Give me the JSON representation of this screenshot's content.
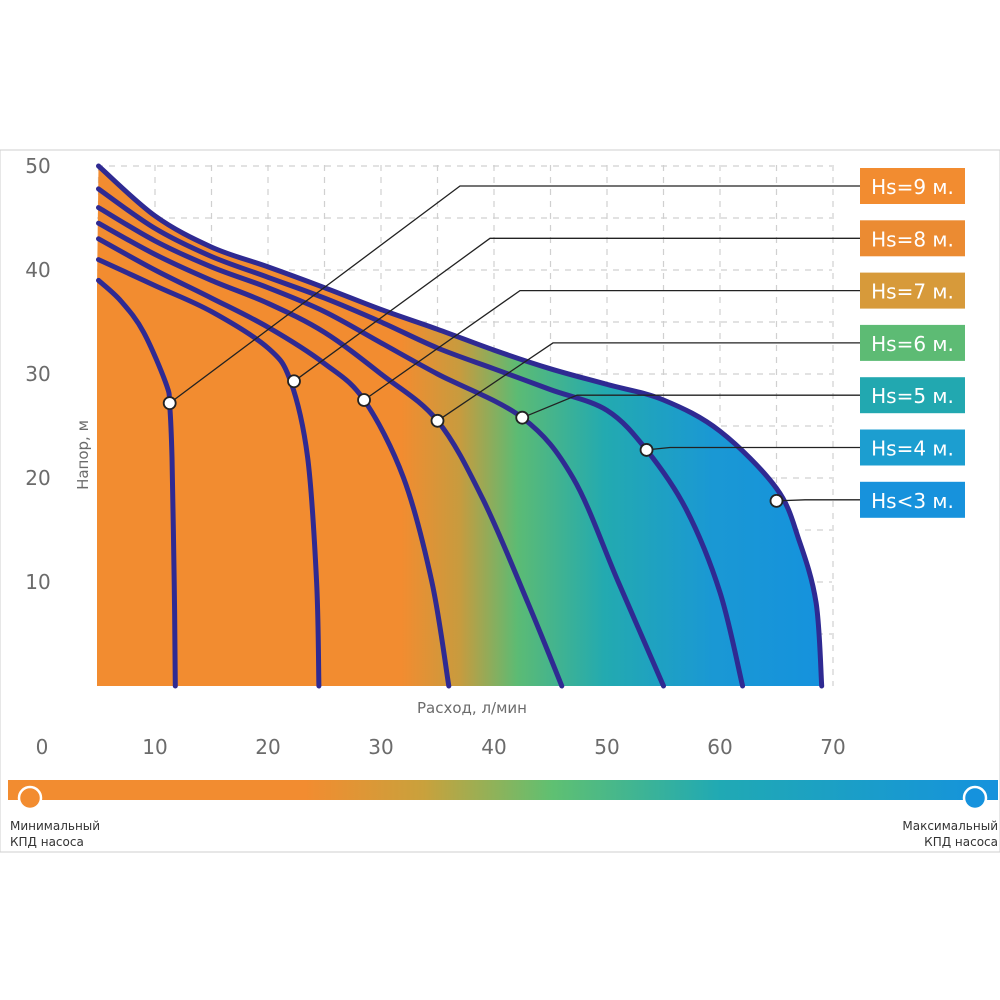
{
  "chart_data": {
    "type": "line",
    "xlabel": "Расход, л/мин",
    "ylabel": "Напор, м",
    "xlim": [
      0,
      70
    ],
    "ylim": [
      0,
      50
    ],
    "x_ticks": [
      "0",
      "10",
      "20",
      "30",
      "40",
      "50",
      "60",
      "70"
    ],
    "y_ticks": [
      "10",
      "20",
      "30",
      "40",
      "50"
    ],
    "grid": true,
    "series": [
      {
        "name": "Hs=9 м.",
        "color": "#f28c30",
        "points": [
          [
            5,
            39
          ],
          [
            7,
            37
          ],
          [
            9,
            34
          ],
          [
            11,
            29
          ],
          [
            11.3,
            27
          ],
          [
            11.5,
            22
          ],
          [
            11.7,
            10
          ],
          [
            11.8,
            0
          ]
        ]
      },
      {
        "name": "Hs=8 м.",
        "color": "#eb8b32",
        "points": [
          [
            5,
            41
          ],
          [
            10,
            38.5
          ],
          [
            15,
            36
          ],
          [
            20,
            32.5
          ],
          [
            22,
            29.3
          ],
          [
            23.5,
            22
          ],
          [
            24.3,
            10
          ],
          [
            24.5,
            0
          ]
        ]
      },
      {
        "name": "Hs=7 м.",
        "color": "#d79a3a",
        "points": [
          [
            5,
            43
          ],
          [
            10,
            40
          ],
          [
            15,
            37.3
          ],
          [
            20,
            34.5
          ],
          [
            25,
            31
          ],
          [
            28.5,
            27.5
          ],
          [
            32,
            20
          ],
          [
            34.5,
            10
          ],
          [
            36,
            0
          ]
        ]
      },
      {
        "name": "Hs=6 м.",
        "color": "#5dbb74",
        "points": [
          [
            5,
            44.5
          ],
          [
            10,
            41.5
          ],
          [
            15,
            39
          ],
          [
            20,
            36.8
          ],
          [
            25,
            34
          ],
          [
            30,
            30
          ],
          [
            35,
            25.5
          ],
          [
            39,
            18
          ],
          [
            43,
            8
          ],
          [
            46,
            0
          ]
        ]
      },
      {
        "name": "Hs=5 м.",
        "color": "#22a8b0",
        "points": [
          [
            5,
            46
          ],
          [
            10,
            42.8
          ],
          [
            15,
            40.3
          ],
          [
            20,
            38.3
          ],
          [
            25,
            36
          ],
          [
            30,
            33
          ],
          [
            35,
            30
          ],
          [
            42.5,
            25.8
          ],
          [
            47,
            20
          ],
          [
            51,
            10
          ],
          [
            55,
            0
          ]
        ]
      },
      {
        "name": "Hs=4 м.",
        "color": "#1c9ed0",
        "points": [
          [
            5,
            47.8
          ],
          [
            10,
            44
          ],
          [
            15,
            41.3
          ],
          [
            20,
            39.3
          ],
          [
            25,
            37.3
          ],
          [
            30,
            35
          ],
          [
            35,
            32.5
          ],
          [
            40,
            30.5
          ],
          [
            45,
            28.5
          ],
          [
            50,
            26.5
          ],
          [
            53.5,
            22.7
          ],
          [
            57,
            17
          ],
          [
            60,
            9
          ],
          [
            62,
            0
          ]
        ]
      },
      {
        "name": "Hs<3 м.",
        "color": "#1792dc",
        "points": [
          [
            5,
            50
          ],
          [
            10,
            45.2
          ],
          [
            15,
            42.2
          ],
          [
            20,
            40.3
          ],
          [
            25,
            38.3
          ],
          [
            30,
            36.2
          ],
          [
            35,
            34.3
          ],
          [
            40,
            32.3
          ],
          [
            45,
            30.5
          ],
          [
            50,
            29
          ],
          [
            55,
            27.5
          ],
          [
            60,
            24.5
          ],
          [
            65,
            19
          ],
          [
            67,
            14
          ],
          [
            68.5,
            8
          ],
          [
            69,
            0
          ]
        ]
      }
    ],
    "markers": [
      {
        "series": "Hs=9 м.",
        "x": 11.3,
        "y": 27.2
      },
      {
        "series": "Hs=8 м.",
        "x": 22.3,
        "y": 29.3
      },
      {
        "series": "Hs=7 м.",
        "x": 28.5,
        "y": 27.5
      },
      {
        "series": "Hs=6 м.",
        "x": 35,
        "y": 25.5
      },
      {
        "series": "Hs=5 м.",
        "x": 42.5,
        "y": 25.8
      },
      {
        "series": "Hs=4 м.",
        "x": 53.5,
        "y": 22.7
      },
      {
        "series": "Hs<3 м.",
        "x": 65,
        "y": 17.8
      }
    ],
    "legend_placement": "right"
  },
  "efficiency_bar": {
    "min_label_line1": "Минимальный",
    "min_label_line2": "КПД насоса",
    "max_label_line1": "Максимальный",
    "max_label_line2": "КПД насоса",
    "min_color": "#f28c30",
    "max_color": "#1792dc"
  }
}
